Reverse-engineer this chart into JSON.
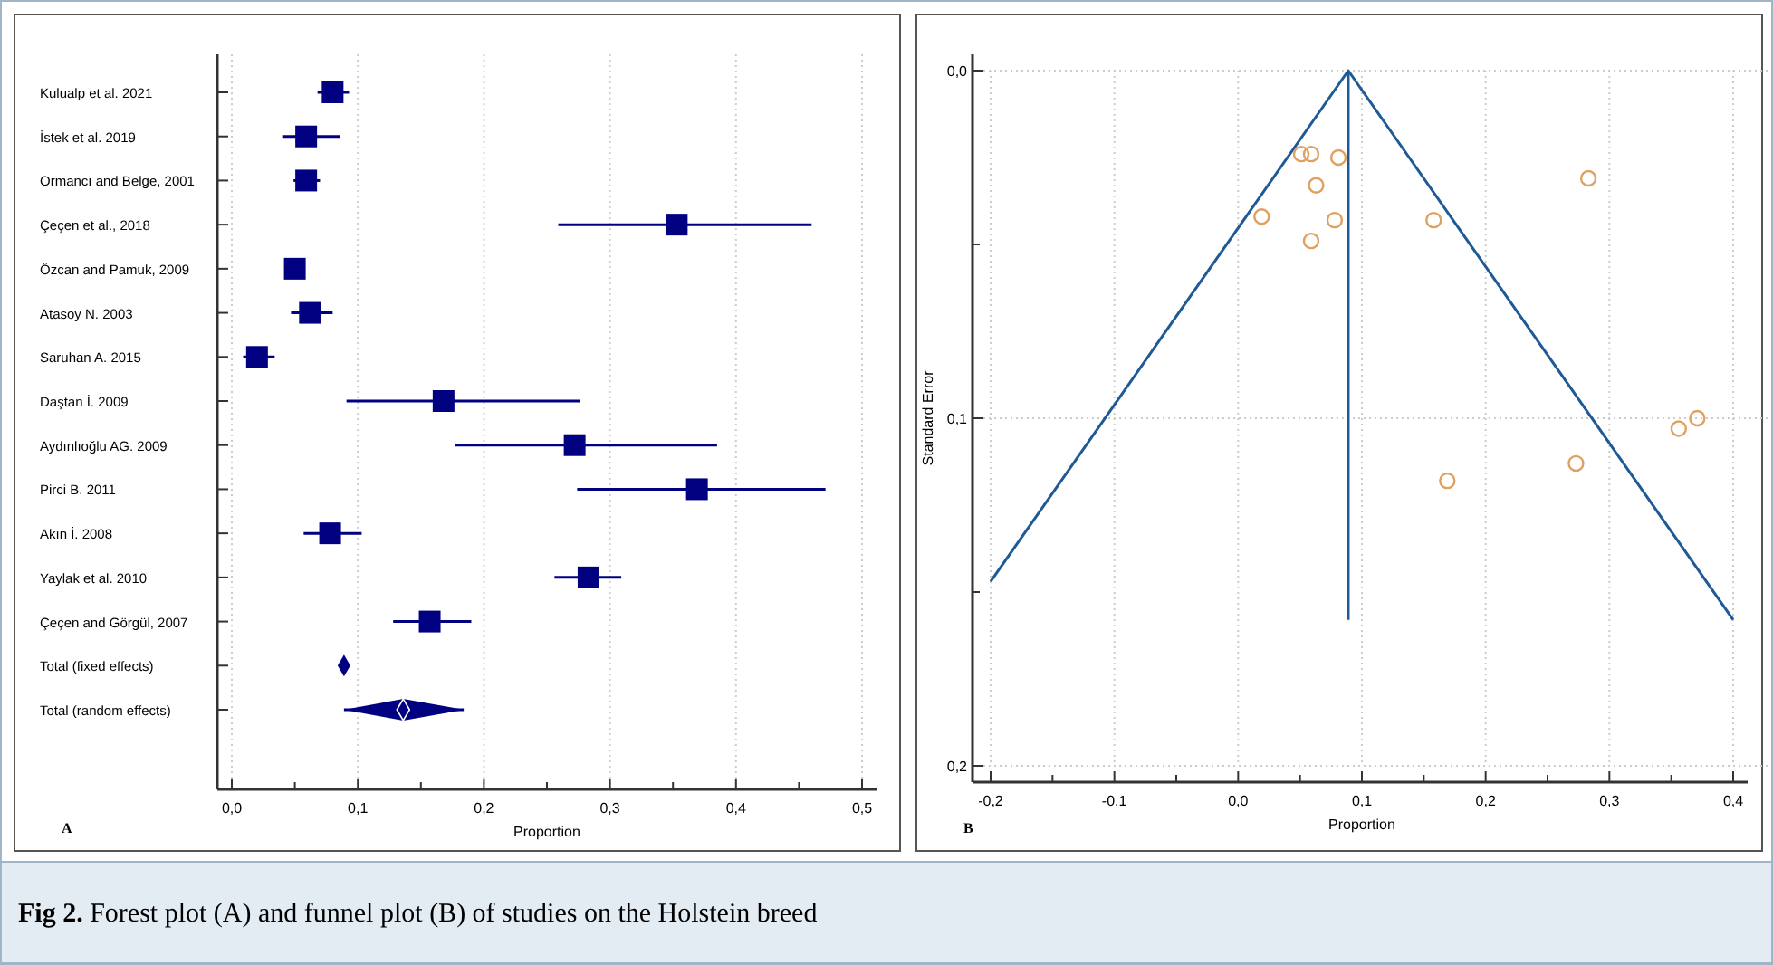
{
  "chart_data": [
    {
      "type": "scatter",
      "orientation": "horizontal",
      "xlabel": "Proportion",
      "grid": "x",
      "annotations": [
        "A",
        "Fig 2. Forest plot (A) and funnel plot (B) of studies on the Holstein breed"
      ],
      "categories": [
        "Kulualp et al. 2021",
        "İstek et al. 2019",
        "Ormancı and Belge, 2001",
        "Çeçen et al., 2018",
        "Özcan and Pamuk, 2009",
        "Atasoy N. 2003",
        "Saruhan A. 2015",
        "Daştan İ. 2009",
        "Aydınlıoğlu AG. 2009",
        "Pirci B. 2011",
        "Akın İ. 2008",
        "Yaylak et al. 2010",
        "Çeçen and Görgül, 2007",
        "Total (fixed effects)",
        "Total (random effects)"
      ],
      "xlim": [
        0,
        0.5
      ],
      "xticks": [
        {
          "value": 0,
          "label": "0,0"
        },
        {
          "value": 0.05,
          "label": null
        },
        {
          "value": 0.1,
          "label": "0,1"
        },
        {
          "value": 0.15,
          "label": null
        },
        {
          "value": 0.2,
          "label": "0,2"
        },
        {
          "value": 0.25,
          "label": null
        },
        {
          "value": 0.3,
          "label": "0,3"
        },
        {
          "value": 0.35,
          "label": null
        },
        {
          "value": 0.4,
          "label": "0,4"
        },
        {
          "value": 0.45,
          "label": null
        },
        {
          "value": 0.5,
          "label": "0,5"
        }
      ],
      "series": [
        {
          "color": "#000080",
          "marker": "square",
          "values": [
            0.08,
            0.059,
            0.059,
            0.353,
            0.05,
            0.062,
            0.02,
            0.168,
            0.272,
            0.369,
            0.078,
            0.283,
            0.157,
            null,
            null
          ],
          "errors": [
            [
              0.068,
              0.093
            ],
            [
              0.04,
              0.086
            ],
            [
              0.049,
              0.07
            ],
            [
              0.259,
              0.46
            ],
            null,
            [
              0.047,
              0.08
            ],
            [
              0.009,
              0.034
            ],
            [
              0.091,
              0.276
            ],
            [
              0.177,
              0.385
            ],
            [
              0.274,
              0.471
            ],
            [
              0.057,
              0.103
            ],
            [
              0.256,
              0.309
            ],
            [
              0.128,
              0.19
            ],
            null,
            null
          ]
        },
        {
          "color": "#000080",
          "marker": "diamond",
          "values": [
            null,
            null,
            null,
            null,
            null,
            null,
            null,
            null,
            null,
            null,
            null,
            null,
            null,
            0.089,
            0.136
          ],
          "errors": [
            null,
            null,
            null,
            null,
            null,
            null,
            null,
            null,
            null,
            null,
            null,
            null,
            null,
            null,
            [
              0.089,
              0.184
            ]
          ]
        }
      ]
    },
    {
      "type": "scatter",
      "xlabel": "Proportion",
      "ylabel": "Standard Error",
      "grid": true,
      "annotations": [
        "B"
      ],
      "xlim": [
        -0.2,
        0.4
      ],
      "ylim": [
        0.2,
        0
      ],
      "xticks": [
        {
          "value": -0.2,
          "label": "-0,2"
        },
        {
          "value": -0.15,
          "label": null
        },
        {
          "value": -0.1,
          "label": "-0,1"
        },
        {
          "value": -0.05,
          "label": null
        },
        {
          "value": 0,
          "label": "0,0"
        },
        {
          "value": 0.05,
          "label": null
        },
        {
          "value": 0.1,
          "label": "0,1"
        },
        {
          "value": 0.15,
          "label": null
        },
        {
          "value": 0.2,
          "label": "0,2"
        },
        {
          "value": 0.25,
          "label": null
        },
        {
          "value": 0.3,
          "label": "0,3"
        },
        {
          "value": 0.35,
          "label": null
        },
        {
          "value": 0.4,
          "label": "0,4"
        }
      ],
      "yticks": [
        {
          "value": 0,
          "label": "0,0"
        },
        {
          "value": 0.05,
          "label": null
        },
        {
          "value": 0.1,
          "label": "0,1"
        },
        {
          "value": 0.15,
          "label": null
        },
        {
          "value": 0.2,
          "label": "0,2"
        }
      ],
      "series": [
        {
          "type": "line",
          "color": "#1f5a96",
          "x": [
            -0.2,
            0.089,
            0.4
          ],
          "values": [
            0.147,
            0,
            0.158
          ]
        },
        {
          "type": "line",
          "color": "#1f5a96",
          "x": [
            0.089,
            0.089
          ],
          "values": [
            0,
            0.158
          ]
        },
        {
          "color": "#e0a060",
          "marker": "circle",
          "x": [
            0.051,
            0.059,
            0.081,
            0.063,
            0.019,
            0.078,
            0.059,
            0.158,
            0.283,
            0.371,
            0.356,
            0.273,
            0.169
          ],
          "values": [
            0.024,
            0.024,
            0.025,
            0.033,
            0.042,
            0.043,
            0.049,
            0.043,
            0.031,
            0.1,
            0.103,
            0.113,
            0.118
          ]
        }
      ]
    }
  ]
}
